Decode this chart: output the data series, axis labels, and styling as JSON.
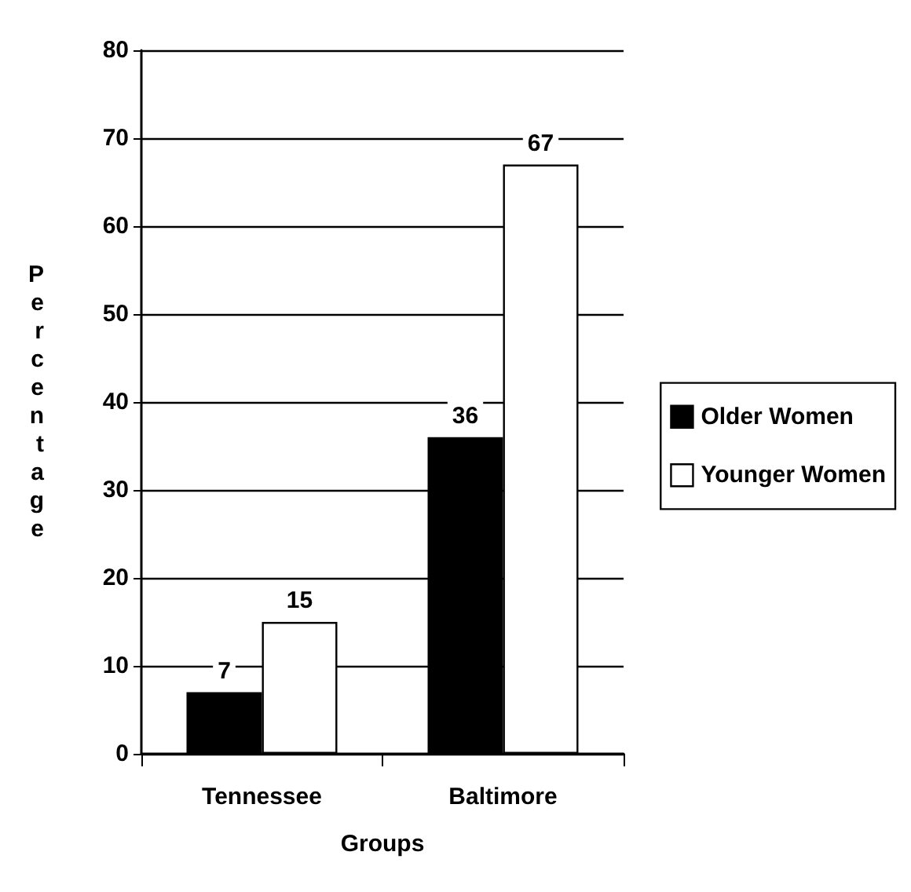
{
  "chart_data": {
    "type": "bar",
    "xlabel": "Groups",
    "ylabel": "Percentage",
    "categories": [
      "Tennessee",
      "Baltimore"
    ],
    "series": [
      {
        "name": "Older Women",
        "color": "#000000",
        "values": [
          7,
          36
        ]
      },
      {
        "name": "Younger Women",
        "color": "#ffffff",
        "values": [
          15,
          67
        ]
      }
    ],
    "ylim": [
      0,
      80
    ],
    "yticks": [
      0,
      10,
      20,
      30,
      40,
      50,
      60,
      70,
      80
    ],
    "grid": "y",
    "legend": "right",
    "data_labels": true
  }
}
